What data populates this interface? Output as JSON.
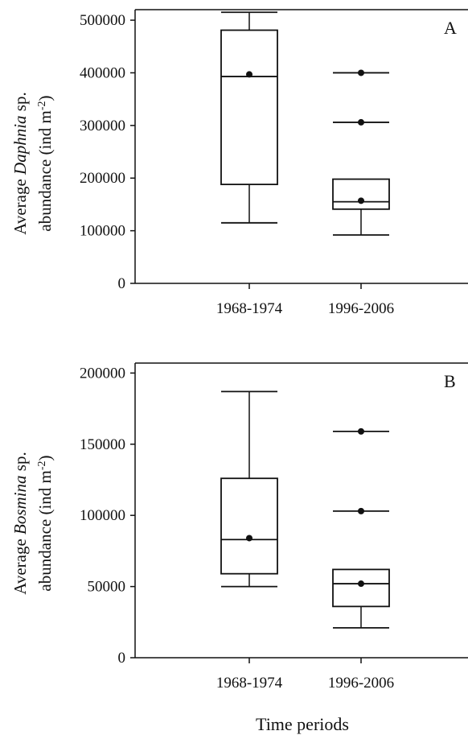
{
  "chart_data": [
    {
      "type": "box",
      "panel_label": "A",
      "ylabel_prefix": "Average ",
      "ylabel_italic": "Daphnia",
      "ylabel_suffix": " sp.",
      "ylabel_line2": "abundance (ind m",
      "ylabel_sup": "-2",
      "ylabel_close": ")",
      "ylim": [
        0,
        520000
      ],
      "yticks": [
        {
          "value": 0,
          "label": "0"
        },
        {
          "value": 100000,
          "label": "100000"
        },
        {
          "value": 200000,
          "label": "200000"
        },
        {
          "value": 300000,
          "label": "300000"
        },
        {
          "value": 400000,
          "label": "400000"
        },
        {
          "value": 500000,
          "label": "500000"
        }
      ],
      "categories": [
        "1968-1974",
        "1996-2006"
      ],
      "boxes": [
        {
          "whisker_low": 115000,
          "q1": 188000,
          "median": 393000,
          "q3": 481000,
          "whisker_high": 515000,
          "mean": 397000,
          "outliers": []
        },
        {
          "whisker_low": 92000,
          "q1": 141000,
          "median": 155000,
          "q3": 198000,
          "whisker_high": null,
          "mean": 157000,
          "outliers": [
            306000,
            400000
          ]
        }
      ]
    },
    {
      "type": "box",
      "panel_label": "B",
      "ylabel_prefix": "Average ",
      "ylabel_italic": "Bosmina",
      "ylabel_suffix": " sp.",
      "ylabel_line2": "abundance  (ind m",
      "ylabel_sup": "-2",
      "ylabel_close": ")",
      "ylim": [
        0,
        207000
      ],
      "yticks": [
        {
          "value": 0,
          "label": "0"
        },
        {
          "value": 50000,
          "label": "50000"
        },
        {
          "value": 100000,
          "label": "100000"
        },
        {
          "value": 150000,
          "label": "150000"
        },
        {
          "value": 200000,
          "label": "200000"
        }
      ],
      "categories": [
        "1968-1974",
        "1996-2006"
      ],
      "boxes": [
        {
          "whisker_low": 50000,
          "q1": 59000,
          "median": 83000,
          "q3": 126000,
          "whisker_high": 187000,
          "mean": 84000,
          "outliers": []
        },
        {
          "whisker_low": 21000,
          "q1": 36000,
          "median": 52000,
          "q3": 62000,
          "whisker_high": null,
          "mean": 52000,
          "outliers": [
            103000,
            159000
          ]
        }
      ]
    }
  ],
  "xlabel": "Time periods"
}
